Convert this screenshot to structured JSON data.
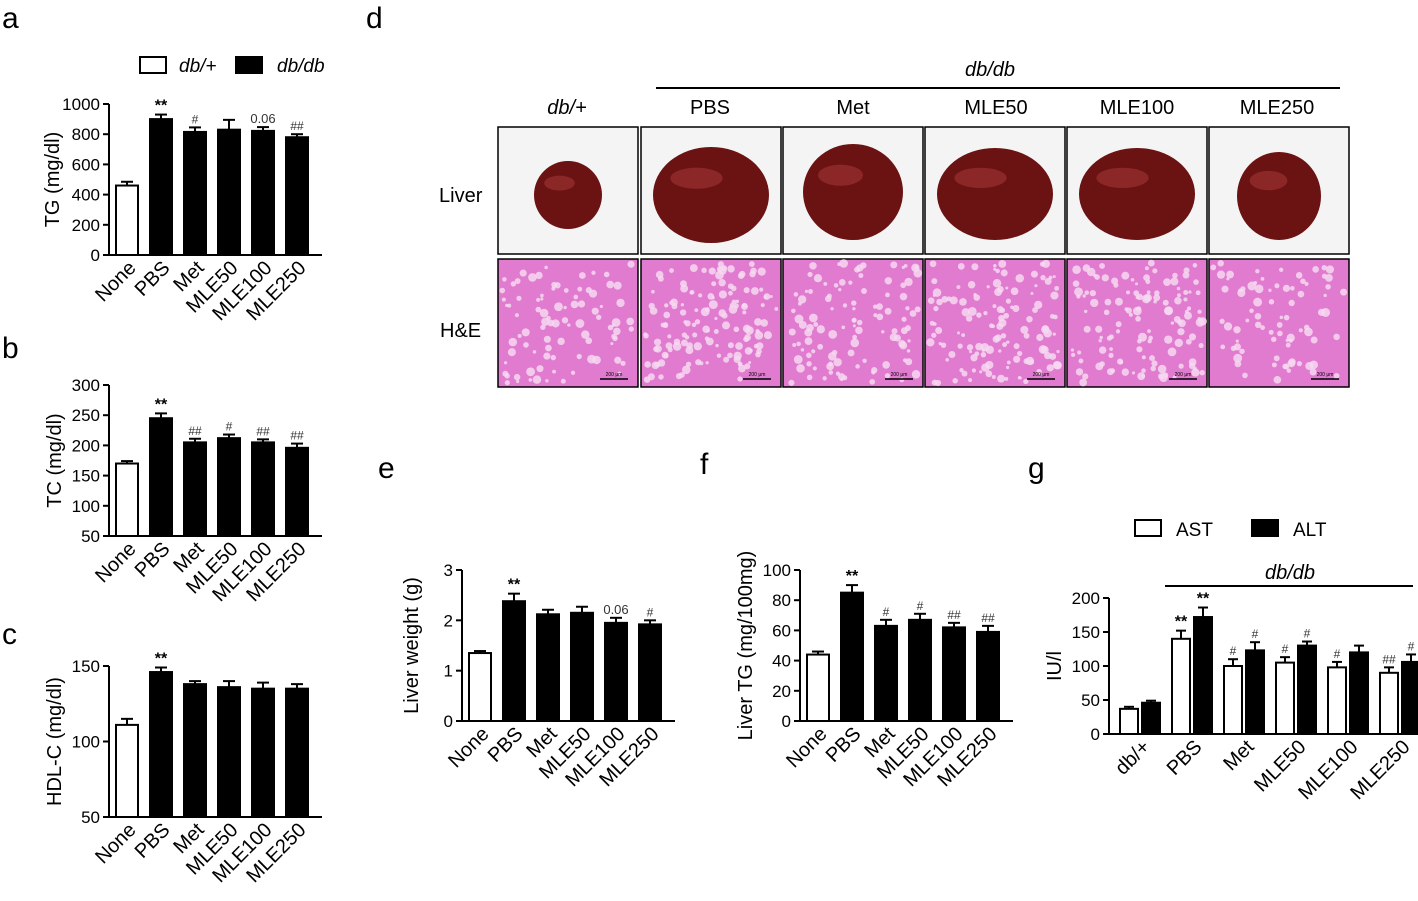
{
  "panels": {
    "a": "a",
    "b": "b",
    "c": "c",
    "d": "d",
    "e": "e",
    "f": "f",
    "g": "g"
  },
  "legend_top": {
    "db_plus": "db/+",
    "db_db": "db/db"
  },
  "photo_panel": {
    "group_label": "db/db",
    "columns": [
      "db/+",
      "PBS",
      "Met",
      "MLE50",
      "MLE100",
      "MLE250"
    ],
    "rows": [
      "Liver",
      "H&E"
    ],
    "scale_bar_text": "200 μm",
    "colors": {
      "liver": "#6b1212",
      "he_pink": "#e07bcf",
      "he_light": "#f6d8f1"
    }
  },
  "colors": {
    "bar_fill": "#000000",
    "bar_open": "#ffffff",
    "axis": "#000000"
  },
  "chart_data": [
    {
      "id": "a",
      "type": "bar",
      "categories": [
        "None",
        "PBS",
        "Met",
        "MLE50",
        "MLE100",
        "MLE250"
      ],
      "values": [
        460,
        900,
        815,
        830,
        822,
        780
      ],
      "errors": [
        25,
        30,
        30,
        65,
        25,
        20
      ],
      "open_bars": [
        true,
        false,
        false,
        false,
        false,
        false
      ],
      "annotations": [
        "",
        "**",
        "#",
        "",
        "0.06",
        "##"
      ],
      "ylabel": "TG (mg/dl)",
      "ylim": [
        0,
        1000
      ],
      "yticks": [
        0,
        200,
        400,
        600,
        800,
        1000
      ]
    },
    {
      "id": "b",
      "type": "bar",
      "categories": [
        "None",
        "PBS",
        "Met",
        "MLE50",
        "MLE100",
        "MLE250"
      ],
      "values": [
        170,
        245,
        205,
        212,
        205,
        196
      ],
      "errors": [
        4,
        8,
        6,
        6,
        5,
        7
      ],
      "open_bars": [
        true,
        false,
        false,
        false,
        false,
        false
      ],
      "annotations": [
        "",
        "**",
        "##",
        "#",
        "##",
        "##"
      ],
      "ylabel": "TC (mg/dl)",
      "ylim": [
        50,
        300
      ],
      "yticks": [
        50,
        100,
        150,
        200,
        250,
        300
      ]
    },
    {
      "id": "c",
      "type": "bar",
      "categories": [
        "None",
        "PBS",
        "Met",
        "MLE50",
        "MLE100",
        "MLE250"
      ],
      "values": [
        111,
        146,
        138,
        136,
        135,
        135
      ],
      "errors": [
        4,
        3,
        2,
        4,
        4,
        3
      ],
      "open_bars": [
        true,
        false,
        false,
        false,
        false,
        false
      ],
      "annotations": [
        "",
        "**",
        "",
        "",
        "",
        ""
      ],
      "ylabel": "HDL-C (mg/dl)",
      "ylim": [
        50,
        150
      ],
      "yticks": [
        50,
        100,
        150
      ]
    },
    {
      "id": "e",
      "type": "bar",
      "categories": [
        "None",
        "PBS",
        "Met",
        "MLE50",
        "MLE100",
        "MLE250"
      ],
      "values": [
        1.35,
        2.38,
        2.12,
        2.15,
        1.95,
        1.92
      ],
      "errors": [
        0.04,
        0.15,
        0.09,
        0.12,
        0.1,
        0.08
      ],
      "open_bars": [
        true,
        false,
        false,
        false,
        false,
        false
      ],
      "annotations": [
        "",
        "**",
        "",
        "",
        "0.06",
        "#"
      ],
      "ylabel": "Liver weight (g)",
      "ylim": [
        0,
        3
      ],
      "yticks": [
        0,
        1,
        2,
        3
      ]
    },
    {
      "id": "f",
      "type": "bar",
      "categories": [
        "None",
        "PBS",
        "Met",
        "MLE50",
        "MLE100",
        "MLE250"
      ],
      "values": [
        44,
        85,
        63,
        67,
        62,
        59
      ],
      "errors": [
        2,
        5,
        4,
        4,
        3,
        4
      ],
      "open_bars": [
        true,
        false,
        false,
        false,
        false,
        false
      ],
      "annotations": [
        "",
        "**",
        "#",
        "#",
        "##",
        "##"
      ],
      "ylabel": "Liver TG (mg/100mg)",
      "ylim": [
        0,
        100
      ],
      "yticks": [
        0,
        20,
        40,
        60,
        80,
        100
      ]
    },
    {
      "id": "g",
      "type": "bar",
      "categories": [
        "db/+",
        "PBS",
        "Met",
        "MLE50",
        "MLE100",
        "MLE250"
      ],
      "group_label": "db/db",
      "series": [
        {
          "name": "AST",
          "values": [
            37,
            140,
            100,
            105,
            98,
            90
          ],
          "errors": [
            3,
            12,
            10,
            8,
            8,
            8
          ],
          "annotations": [
            "",
            "**",
            "#",
            "#",
            "#",
            "##"
          ]
        },
        {
          "name": "ALT",
          "values": [
            46,
            172,
            123,
            130,
            120,
            106
          ],
          "errors": [
            3,
            14,
            12,
            6,
            10,
            11
          ],
          "annotations": [
            "",
            "**",
            "#",
            "#",
            "",
            "#"
          ]
        }
      ],
      "ylabel": "IU/l",
      "ylim": [
        0,
        200
      ],
      "yticks": [
        0,
        50,
        100,
        150,
        200
      ]
    }
  ]
}
